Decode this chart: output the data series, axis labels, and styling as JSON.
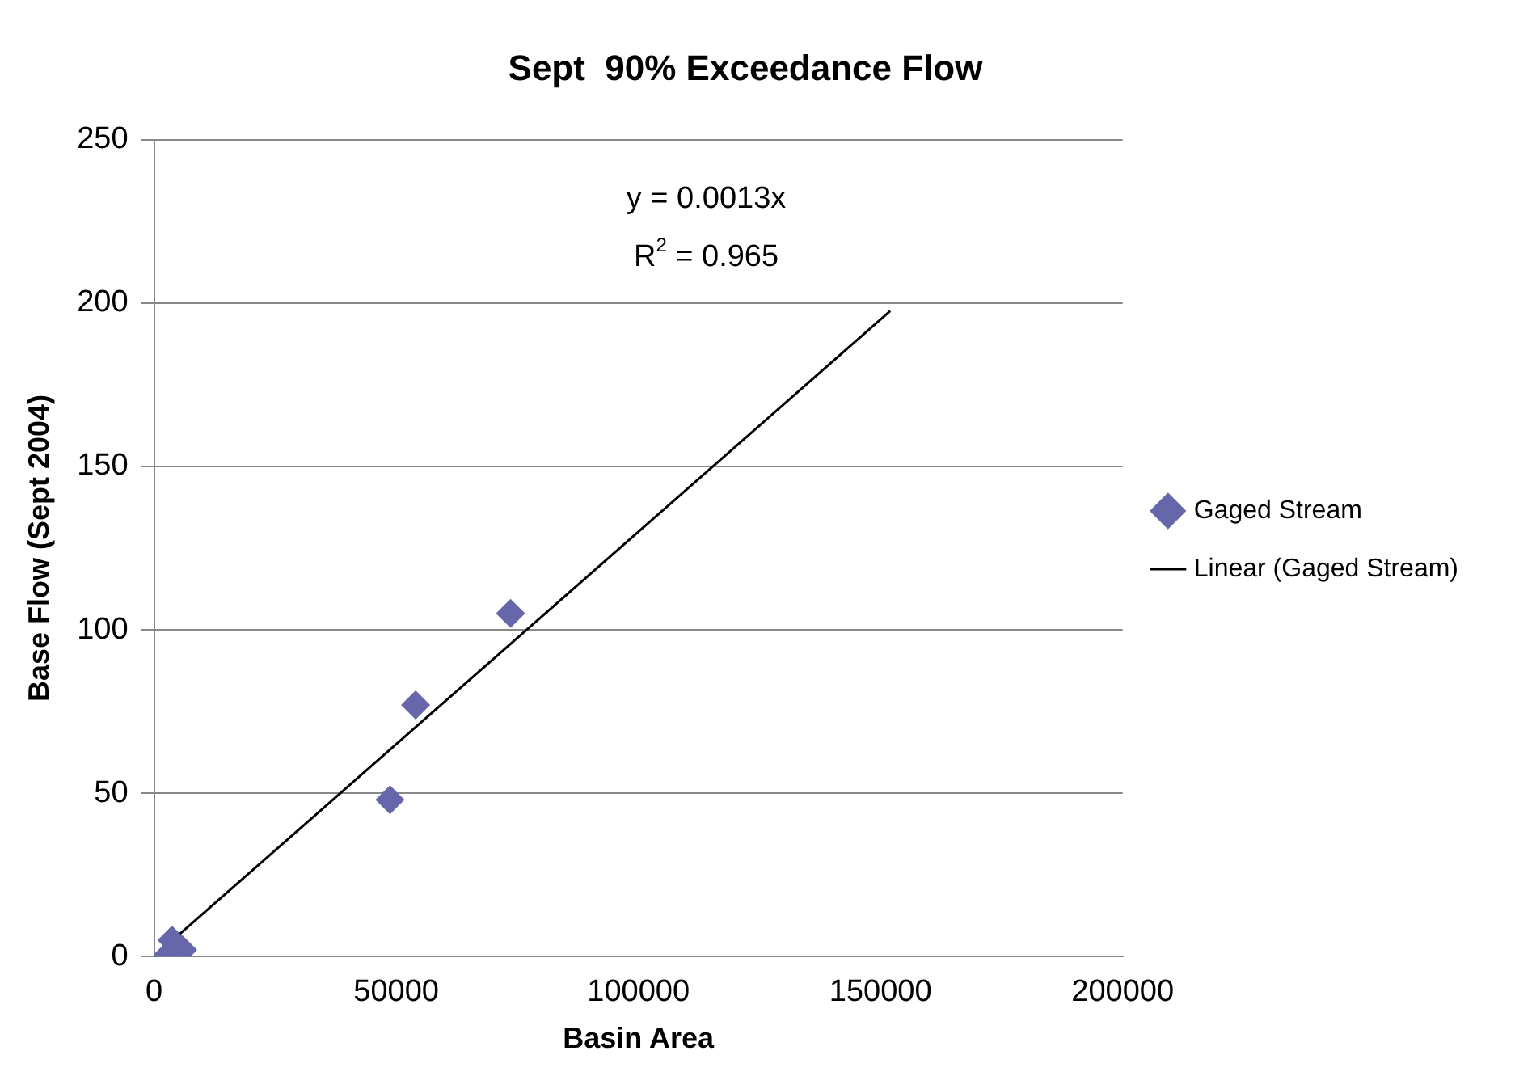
{
  "chart_data": {
    "type": "scatter",
    "title": "Sept  90% Exceedance Flow",
    "xlabel": "Basin Area",
    "ylabel": "Base Flow (Sept 2004)",
    "x": [
      2500,
      3700,
      5900,
      48700,
      54000,
      73600
    ],
    "series": [
      {
        "name": "Gaged Stream",
        "color": "#6666aa",
        "marker": "diamond",
        "values": [
          0,
          5,
          2,
          48,
          77,
          105
        ]
      },
      {
        "name": "Linear (Gaged Stream)",
        "type": "line",
        "color": "#000000",
        "x": [
          0,
          152000
        ],
        "values": [
          0,
          197.6
        ],
        "marker": "none"
      }
    ],
    "annotations": [
      "y = 0.0013x",
      "R$^{2}$ = 0.965"
    ],
    "xlim": [
      0,
      200000
    ],
    "xticks": [
      0,
      50000,
      100000,
      150000,
      200000
    ],
    "ylim": [
      0,
      250
    ],
    "yticks": [
      0,
      50,
      100,
      150,
      200,
      250
    ],
    "grid": "y",
    "legend": "right"
  }
}
